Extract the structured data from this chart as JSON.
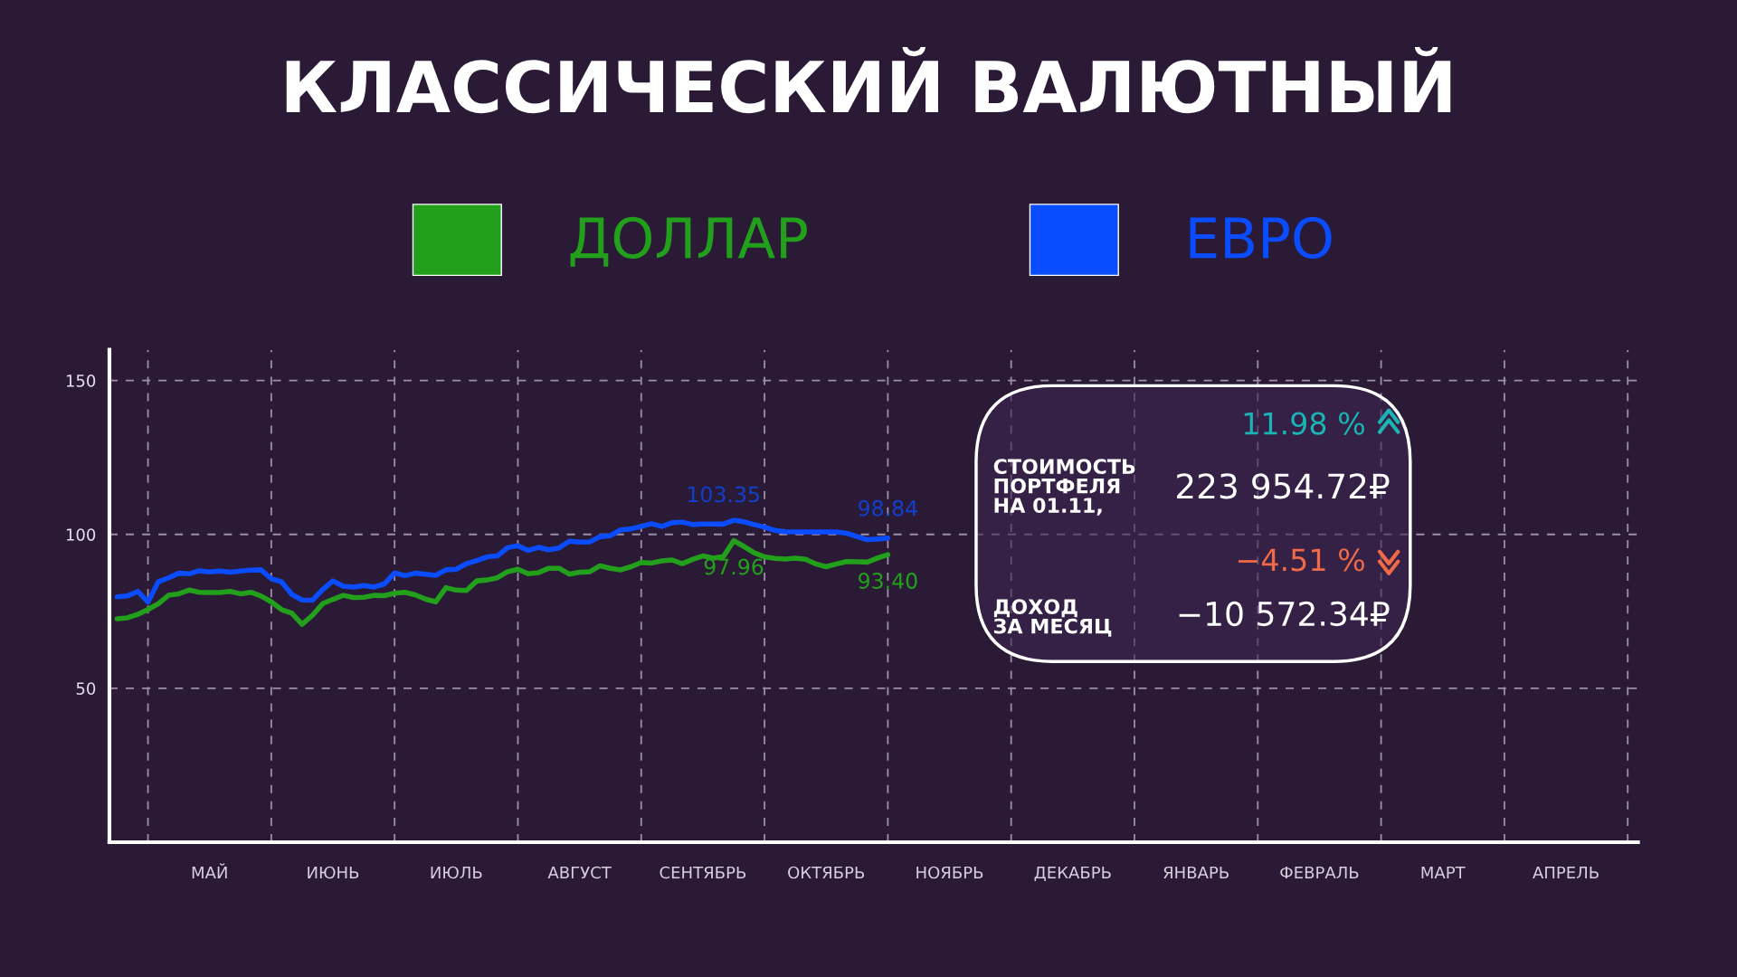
{
  "chart_data": {
    "type": "line",
    "title": "КЛАССИЧЕСКИЙ ВАЛЮТНЫЙ",
    "legend": "top",
    "grid": true,
    "line_style": "solid",
    "marker": "none",
    "ylim": [
      0,
      160
    ],
    "yticks": [
      50,
      100,
      150
    ],
    "categories": [
      null,
      null,
      null,
      null,
      null,
      null,
      null,
      null,
      null,
      "МАЙ",
      null,
      null,
      null,
      null,
      null,
      null,
      null,
      null,
      null,
      null,
      null,
      "ИЮНЬ",
      null,
      null,
      null,
      null,
      null,
      null,
      null,
      null,
      null,
      null,
      null,
      "ИЮЛЬ",
      null,
      null,
      null,
      null,
      null,
      null,
      null,
      null,
      null,
      null,
      null,
      "АВГУСТ",
      null,
      null,
      null,
      null,
      null,
      null,
      null,
      null,
      null,
      null,
      null,
      "СЕНТЯБРЬ",
      null,
      null,
      null,
      null,
      null,
      null,
      null,
      null,
      null,
      null,
      null,
      "ОКТЯБРЬ",
      null,
      null,
      null,
      null,
      null,
      null,
      null,
      null,
      null,
      null,
      null,
      "НОЯБРЬ",
      null,
      null,
      null,
      null,
      null,
      null,
      null,
      null,
      null,
      null,
      null,
      "ДЕКАБРЬ",
      null,
      null,
      null,
      null,
      null,
      null,
      null,
      null,
      null,
      null,
      null,
      "ЯНВАРЬ",
      null,
      null,
      null,
      null,
      null,
      null,
      null,
      null,
      null,
      null,
      null,
      "ФЕВРАЛЬ",
      null,
      null,
      null,
      null,
      null,
      null,
      null,
      null,
      null,
      null,
      null,
      "МАРТ",
      null,
      null,
      null,
      null,
      null,
      null,
      null,
      null,
      null,
      null,
      null,
      "АПРЕЛЬ",
      null,
      null,
      null,
      null,
      null,
      null
    ],
    "series": [
      {
        "name": "ДОЛЛАР",
        "color": "#22a01c",
        "values": [
          72.6,
          72.9,
          74.0,
          75.6,
          77.5,
          80.2,
          80.7,
          81.9,
          81.2,
          81.1,
          81.1,
          81.5,
          80.7,
          81.2,
          80.0,
          78.1,
          75.6,
          74.4,
          70.8,
          73.7,
          77.5,
          78.9,
          80.2,
          79.5,
          79.6,
          80.2,
          80.1,
          80.9,
          81.2,
          80.4,
          79.0,
          78.1,
          82.7,
          81.9,
          81.8,
          84.9,
          85.2,
          85.9,
          87.9,
          88.7,
          87.2,
          87.6,
          89.0,
          89.0,
          87.1,
          87.7,
          87.9,
          89.8,
          89.0,
          88.5,
          89.5,
          90.9,
          90.7,
          91.4,
          91.7,
          90.5,
          91.9,
          93.0,
          92.3,
          92.8,
          97.96,
          96.1,
          94.0,
          92.7,
          92.2,
          92.0,
          92.3,
          91.9,
          90.4,
          89.5,
          90.4,
          91.2,
          91.1,
          91.0,
          92.3,
          93.4,
          null,
          null,
          null,
          null,
          null,
          null,
          null,
          null,
          null,
          null,
          null,
          null,
          null,
          null,
          null,
          null,
          null,
          null,
          null,
          null,
          null,
          null,
          null,
          null,
          null,
          null,
          null,
          null,
          null,
          null,
          null,
          null,
          null,
          null,
          null,
          null,
          null,
          null,
          null,
          null,
          null,
          null,
          null,
          null,
          null,
          null,
          null,
          null,
          null,
          null,
          null,
          null,
          null,
          null,
          null,
          null,
          null,
          null,
          null,
          null,
          null,
          null,
          null,
          null,
          null,
          null,
          null,
          null,
          null,
          null,
          null,
          null
        ],
        "value_labels": [
          null,
          null,
          null,
          null,
          null,
          null,
          null,
          null,
          null,
          null,
          null,
          null,
          null,
          null,
          null,
          null,
          null,
          null,
          null,
          null,
          null,
          null,
          null,
          null,
          null,
          null,
          null,
          null,
          null,
          null,
          null,
          null,
          null,
          null,
          null,
          null,
          null,
          null,
          null,
          null,
          null,
          null,
          null,
          null,
          null,
          null,
          null,
          null,
          null,
          null,
          null,
          null,
          null,
          null,
          null,
          null,
          null,
          null,
          null,
          null,
          "97.96",
          null,
          null,
          null,
          null,
          null,
          null,
          null,
          null,
          null,
          null,
          null,
          null,
          null,
          null,
          "93.40",
          null,
          null,
          null,
          null,
          null,
          null,
          null,
          null,
          null,
          null,
          null,
          null,
          null,
          null,
          null,
          null,
          null,
          null,
          null,
          null,
          null,
          null,
          null,
          null,
          null,
          null,
          null,
          null,
          null,
          null,
          null,
          null,
          null,
          null,
          null,
          null,
          null,
          null,
          null,
          null,
          null,
          null,
          null,
          null,
          null,
          null,
          null,
          null,
          null,
          null,
          null,
          null,
          null,
          null,
          null,
          null,
          null,
          null,
          null,
          null,
          null,
          null,
          null,
          null,
          null,
          null,
          null,
          null,
          null,
          null,
          null,
          null
        ]
      },
      {
        "name": "ЕВРО",
        "color": "#0a4cff",
        "values": [
          79.7,
          80.0,
          81.5,
          78.0,
          84.6,
          85.9,
          87.4,
          87.2,
          88.2,
          87.8,
          88.1,
          87.7,
          88.1,
          88.4,
          88.5,
          85.6,
          84.6,
          80.5,
          78.7,
          78.6,
          82.1,
          84.9,
          83.2,
          82.9,
          83.4,
          82.9,
          83.9,
          87.5,
          86.6,
          87.4,
          87.1,
          86.7,
          88.5,
          88.7,
          90.5,
          91.5,
          92.7,
          93.0,
          95.7,
          96.3,
          94.8,
          95.8,
          95.0,
          95.6,
          97.8,
          97.5,
          97.6,
          99.3,
          99.6,
          101.5,
          101.8,
          102.6,
          103.5,
          102.6,
          103.8,
          104.0,
          103.2,
          103.4,
          103.4,
          103.35,
          104.6,
          104.1,
          103.2,
          102.4,
          101.3,
          100.9,
          100.8,
          100.8,
          100.8,
          100.8,
          100.8,
          100.4,
          99.3,
          98.3,
          98.5,
          98.84,
          null,
          null,
          null,
          null,
          null,
          null,
          null,
          null,
          null,
          null,
          null,
          null,
          null,
          null,
          null,
          null,
          null,
          null,
          null,
          null,
          null,
          null,
          null,
          null,
          null,
          null,
          null,
          null,
          null,
          null,
          null,
          null,
          null,
          null,
          null,
          null,
          null,
          null,
          null,
          null,
          null,
          null,
          null,
          null,
          null,
          null,
          null,
          null,
          null,
          null,
          null,
          null,
          null,
          null,
          null,
          null,
          null,
          null,
          null,
          null,
          null,
          null,
          null,
          null,
          null,
          null,
          null,
          null,
          null,
          null,
          null,
          null
        ],
        "value_labels": [
          null,
          null,
          null,
          null,
          null,
          null,
          null,
          null,
          null,
          null,
          null,
          null,
          null,
          null,
          null,
          null,
          null,
          null,
          null,
          null,
          null,
          null,
          null,
          null,
          null,
          null,
          null,
          null,
          null,
          null,
          null,
          null,
          null,
          null,
          null,
          null,
          null,
          null,
          null,
          null,
          null,
          null,
          null,
          null,
          null,
          null,
          null,
          null,
          null,
          null,
          null,
          null,
          null,
          null,
          null,
          null,
          null,
          null,
          null,
          "103.35",
          null,
          null,
          null,
          null,
          null,
          null,
          null,
          null,
          null,
          null,
          null,
          null,
          null,
          null,
          null,
          "98.84",
          null,
          null,
          null,
          null,
          null,
          null,
          null,
          null,
          null,
          null,
          null,
          null,
          null,
          null,
          null,
          null,
          null,
          null,
          null,
          null,
          null,
          null,
          null,
          null,
          null,
          null,
          null,
          null,
          null,
          null,
          null,
          null,
          null,
          null,
          null,
          null,
          null,
          null,
          null,
          null,
          null,
          null,
          null,
          null,
          null,
          null,
          null,
          null,
          null,
          null,
          null,
          null,
          null,
          null,
          null,
          null,
          null,
          null,
          null,
          null,
          null,
          null,
          null,
          null,
          null,
          null,
          null,
          null,
          null,
          null,
          null,
          null
        ]
      }
    ],
    "annotations": [
      "11.98 %",
      "СТОИМОСТЬ\nПОРТФЕЛЯ\nНА 01.11,",
      "223 954.72₽",
      "−4.51 %",
      "ДОХОД\nЗА МЕСЯЦ",
      "−10 572.34₽"
    ]
  }
}
